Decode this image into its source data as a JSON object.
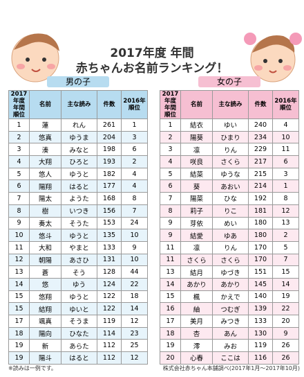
{
  "header": {
    "title_line1": "2017年度 年間",
    "title_line2": "赤ちゃんお名前ランキング！"
  },
  "boys": {
    "label": "男の子",
    "columns": [
      "2017年度\n年間\n順位",
      "名前",
      "主な読み",
      "件数",
      "2016年\n順位"
    ],
    "rows": [
      [
        1,
        "蓮",
        "れん",
        261,
        1
      ],
      [
        2,
        "悠真",
        "ゆうま",
        204,
        3
      ],
      [
        3,
        "湊",
        "みなと",
        198,
        6
      ],
      [
        4,
        "大翔",
        "ひろと",
        193,
        2
      ],
      [
        5,
        "悠人",
        "ゆうと",
        182,
        4
      ],
      [
        6,
        "陽翔",
        "はると",
        177,
        4
      ],
      [
        7,
        "陽太",
        "ようた",
        168,
        8
      ],
      [
        8,
        "樹",
        "いつき",
        156,
        7
      ],
      [
        9,
        "奏太",
        "そうた",
        153,
        24
      ],
      [
        10,
        "悠斗",
        "ゆうと",
        135,
        10
      ],
      [
        11,
        "大和",
        "やまと",
        133,
        9
      ],
      [
        12,
        "朝陽",
        "あさひ",
        131,
        10
      ],
      [
        13,
        "蒼",
        "そう",
        128,
        44
      ],
      [
        14,
        "悠",
        "ゆう",
        124,
        22
      ],
      [
        15,
        "悠翔",
        "ゆうと",
        122,
        18
      ],
      [
        15,
        "結翔",
        "ゆいと",
        122,
        14
      ],
      [
        17,
        "颯真",
        "そうま",
        119,
        12
      ],
      [
        18,
        "陽向",
        "ひなた",
        114,
        23
      ],
      [
        19,
        "新",
        "あらた",
        112,
        25
      ],
      [
        19,
        "陽斗",
        "はると",
        112,
        12
      ]
    ]
  },
  "girls": {
    "label": "女の子",
    "columns": [
      "2017年度\n年間\n順位",
      "名前",
      "主な読み",
      "件数",
      "2016年\n順位"
    ],
    "rows": [
      [
        1,
        "結衣",
        "ゆい",
        240,
        4
      ],
      [
        2,
        "陽葵",
        "ひまり",
        234,
        10
      ],
      [
        3,
        "凛",
        "りん",
        229,
        11
      ],
      [
        4,
        "咲良",
        "さくら",
        217,
        6
      ],
      [
        5,
        "結菜",
        "ゆうな",
        215,
        3
      ],
      [
        6,
        "葵",
        "あおい",
        214,
        1
      ],
      [
        7,
        "陽菜",
        "ひな",
        192,
        8
      ],
      [
        8,
        "莉子",
        "りこ",
        181,
        12
      ],
      [
        9,
        "芽依",
        "めい",
        180,
        13
      ],
      [
        9,
        "結愛",
        "ゆあ",
        180,
        2
      ],
      [
        11,
        "凛",
        "りん",
        170,
        5
      ],
      [
        11,
        "さくら",
        "さくら",
        170,
        7
      ],
      [
        13,
        "結月",
        "ゆづき",
        151,
        15
      ],
      [
        14,
        "あかり",
        "あかり",
        145,
        14
      ],
      [
        15,
        "楓",
        "かえで",
        140,
        19
      ],
      [
        16,
        "紬",
        "つむぎ",
        139,
        22
      ],
      [
        17,
        "美月",
        "みつき",
        133,
        20
      ],
      [
        18,
        "杏",
        "あん",
        130,
        9
      ],
      [
        19,
        "澪",
        "みお",
        119,
        26
      ],
      [
        20,
        "心春",
        "ここは",
        116,
        26
      ]
    ]
  },
  "footer": {
    "note": "※読みは一例です。",
    "source": "株式会社赤ちゃん本舗調べ(2017年1月～2017年10月)"
  }
}
